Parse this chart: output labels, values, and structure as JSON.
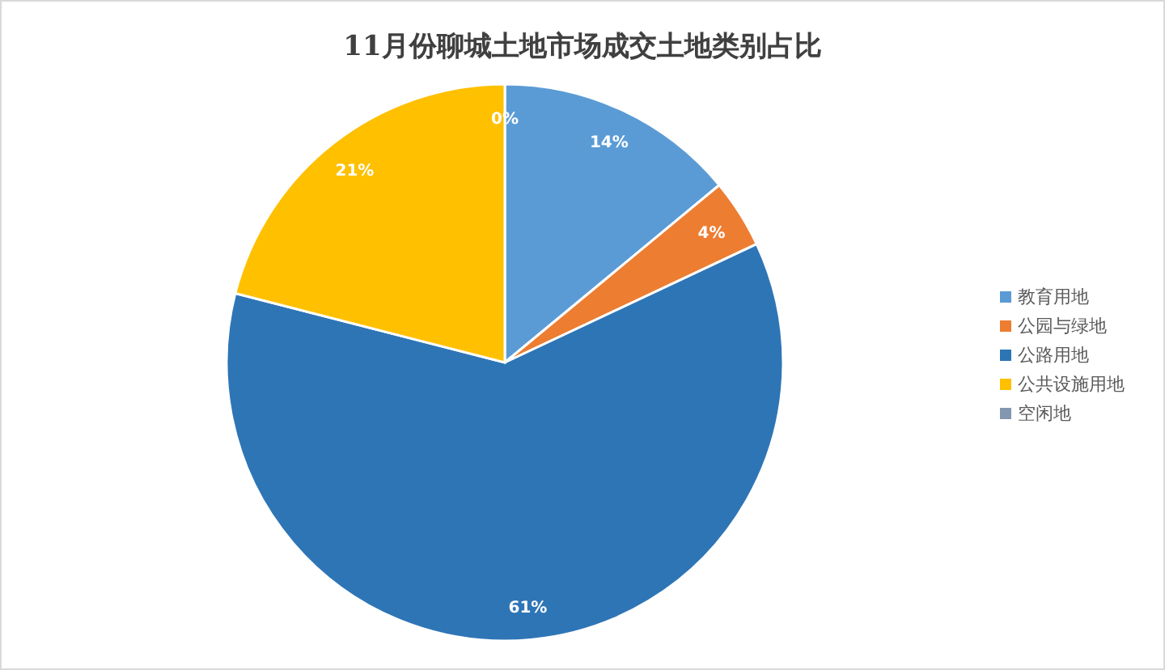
{
  "chart_data": {
    "type": "pie",
    "title": "11月份聊城土地市场成交土地类别占比",
    "categories": [
      "教育用地",
      "公园与绿地",
      "公路用地",
      "公共设施用地",
      "空闲地"
    ],
    "values": [
      14,
      4,
      61,
      21,
      0
    ],
    "colors": [
      "#5b9bd5",
      "#ed7d31",
      "#2e75b6",
      "#ffc000",
      "#8497b0"
    ],
    "value_labels": [
      "14%",
      "4%",
      "61%",
      "21%",
      "0%"
    ],
    "legend": "right"
  }
}
